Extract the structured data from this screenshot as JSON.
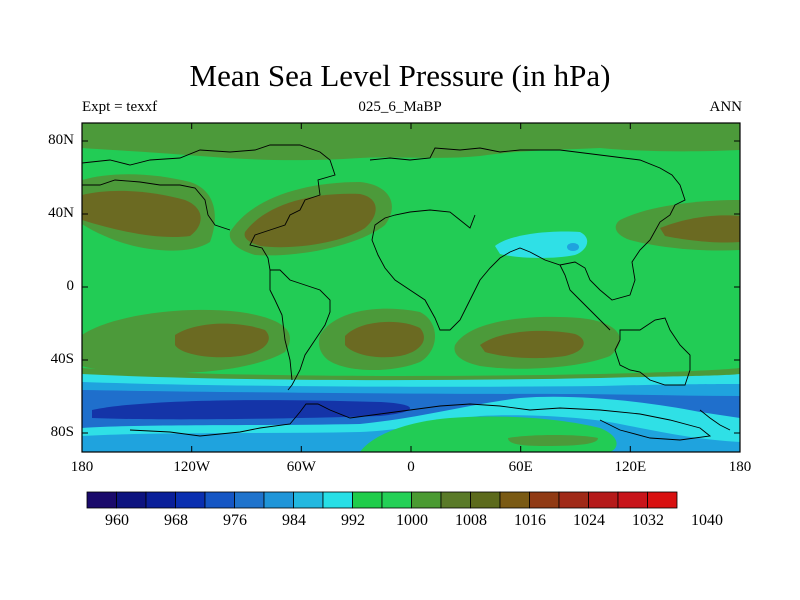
{
  "title": "Mean Sea Level Pressure (in hPa)",
  "subtitle_left": "Expt = texxf",
  "subtitle_center": "025_6_MaBP",
  "subtitle_right": "ANN",
  "lat_labels": [
    "80N",
    "40N",
    "0",
    "40S",
    "80S"
  ],
  "lon_labels": [
    "180",
    "120W",
    "60W",
    "0",
    "60E",
    "120E",
    "180"
  ],
  "colorbar_labels": [
    "960",
    "968",
    "976",
    "984",
    "992",
    "1000",
    "1008",
    "1016",
    "1024",
    "1032",
    "1040"
  ],
  "colorbar_colors": [
    "#1a0a6b",
    "#0d137f",
    "#0a1f99",
    "#0a2fb0",
    "#1556c4",
    "#1f73cc",
    "#1f95d8",
    "#22b8e0",
    "#27dfe6",
    "#1fcc4a",
    "#24d056",
    "#4a9a32",
    "#5a7a28",
    "#5c6a1c",
    "#7a5a14",
    "#903a14",
    "#a02a18",
    "#b51a1a",
    "#c8141a",
    "#d81010"
  ],
  "field_colors": {
    "deep_blue": "#1434a8",
    "blue": "#1f6fcc",
    "light_blue": "#1fa3de",
    "cyan": "#2fe0e6",
    "green": "#22cc55",
    "mid_green": "#4c9a3a",
    "dark_green": "#6b6a22"
  }
}
